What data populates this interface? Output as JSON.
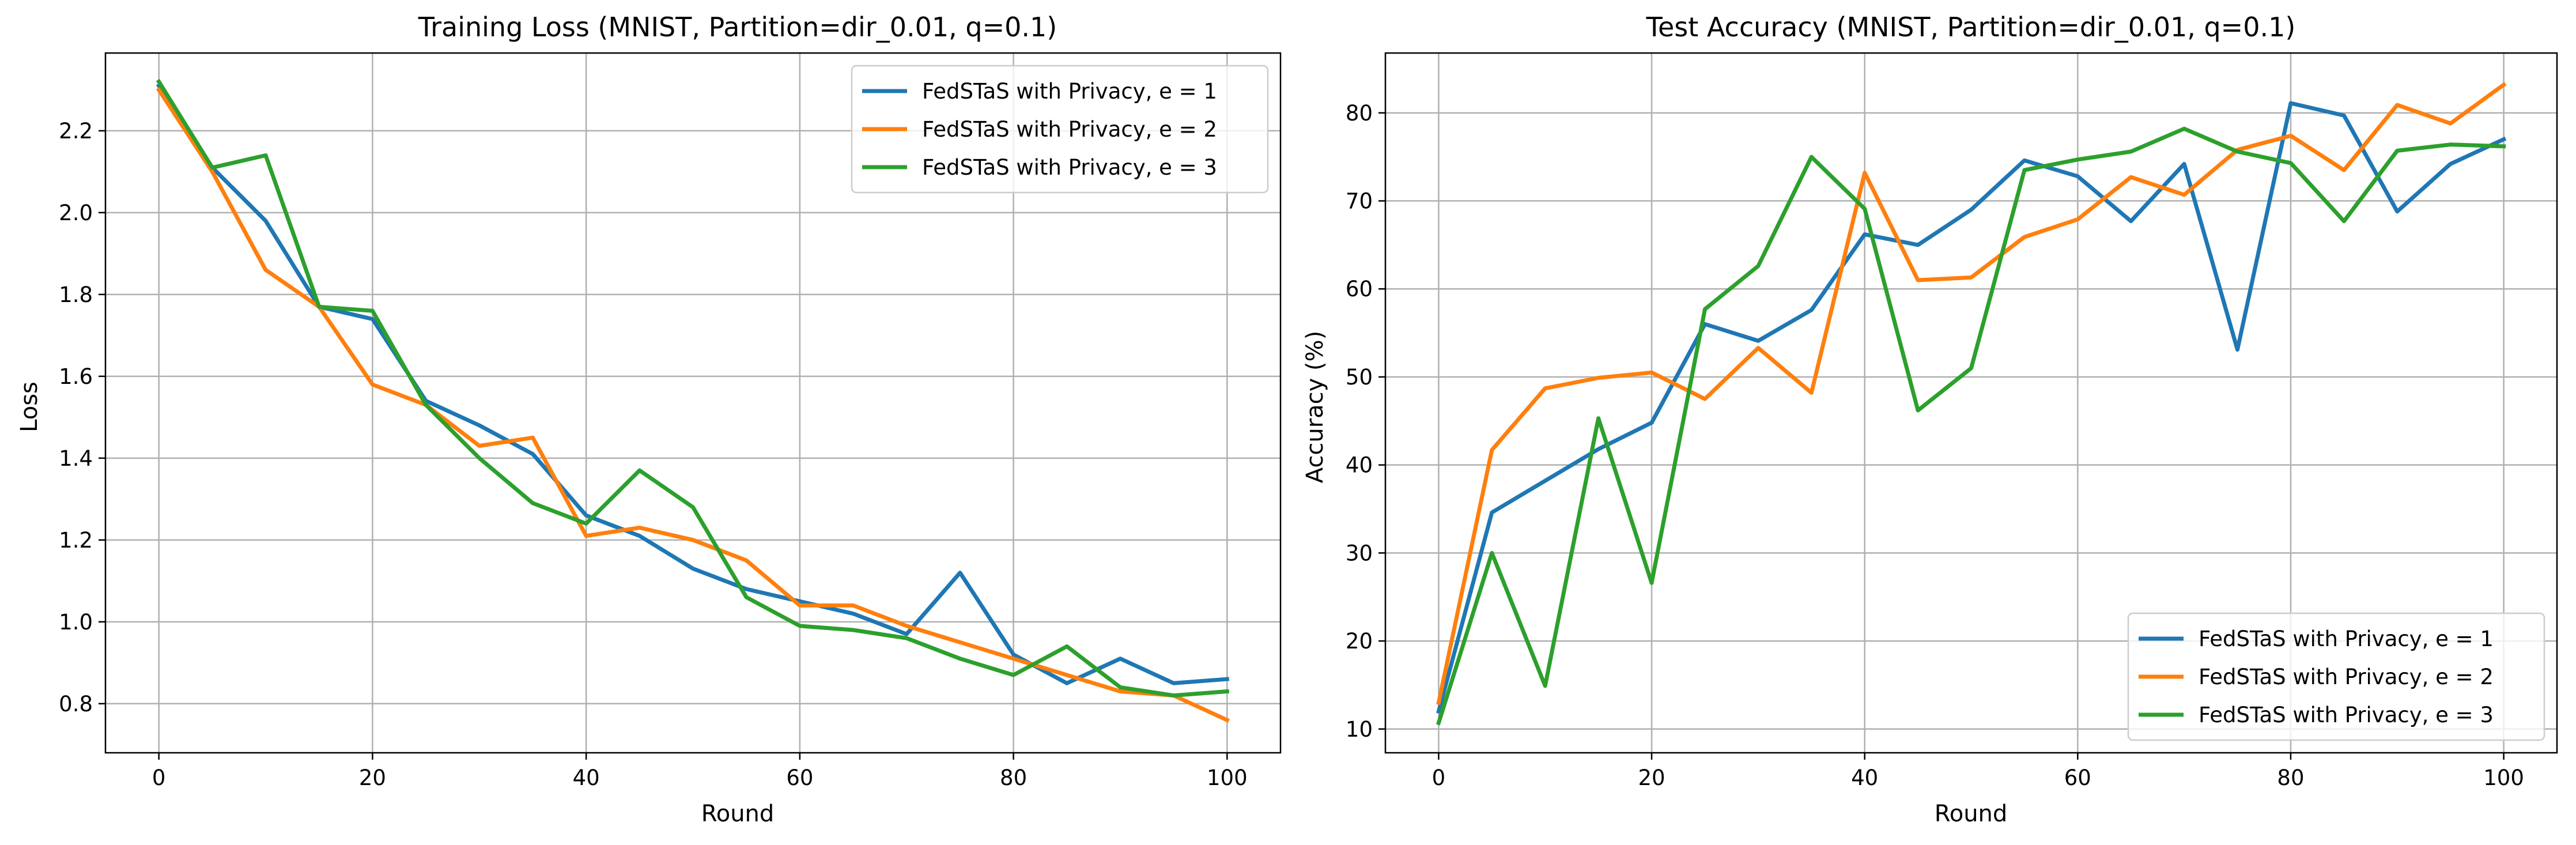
{
  "colors": {
    "series": [
      "#1f77b4",
      "#ff7f0e",
      "#2ca02c"
    ]
  },
  "chart_data": [
    {
      "type": "line",
      "title": "Training Loss (MNIST, Partition=dir_0.01, q=0.1)",
      "xlabel": "Round",
      "ylabel": "Loss",
      "xlim": [
        -5,
        105
      ],
      "ylim": [
        0.68,
        2.39
      ],
      "xticks": [
        0,
        20,
        40,
        60,
        80,
        100
      ],
      "yticks": [
        0.8,
        1.0,
        1.2,
        1.4,
        1.6,
        1.8,
        2.0,
        2.2
      ],
      "ytick_labels": [
        "0.8",
        "1.0",
        "1.2",
        "1.4",
        "1.6",
        "1.8",
        "2.0",
        "2.2"
      ],
      "grid": true,
      "legend_position": "upper right",
      "x": [
        0,
        5,
        10,
        15,
        20,
        25,
        30,
        35,
        40,
        45,
        50,
        55,
        60,
        65,
        70,
        75,
        80,
        85,
        90,
        95,
        100
      ],
      "series": [
        {
          "name": "FedSTaS with Privacy, e = 1",
          "values": [
            2.31,
            2.11,
            1.98,
            1.77,
            1.74,
            1.54,
            1.48,
            1.41,
            1.26,
            1.21,
            1.13,
            1.08,
            1.05,
            1.02,
            0.97,
            1.12,
            0.92,
            0.85,
            0.91,
            0.85,
            0.86
          ]
        },
        {
          "name": "FedSTaS with Privacy, e = 2",
          "values": [
            2.3,
            2.1,
            1.86,
            1.77,
            1.58,
            1.53,
            1.43,
            1.45,
            1.21,
            1.23,
            1.2,
            1.15,
            1.04,
            1.04,
            0.99,
            0.95,
            0.91,
            0.87,
            0.83,
            0.82,
            0.76
          ]
        },
        {
          "name": "FedSTaS with Privacy, e = 3",
          "values": [
            2.32,
            2.11,
            2.14,
            1.77,
            1.76,
            1.53,
            1.4,
            1.29,
            1.24,
            1.37,
            1.28,
            1.06,
            0.99,
            0.98,
            0.96,
            0.91,
            0.87,
            0.94,
            0.84,
            0.82,
            0.83
          ]
        }
      ]
    },
    {
      "type": "line",
      "title": "Test Accuracy (MNIST, Partition=dir_0.01, q=0.1)",
      "xlabel": "Round",
      "ylabel": "Accuracy (%)",
      "xlim": [
        -5,
        105
      ],
      "ylim": [
        7.3,
        86.8
      ],
      "xticks": [
        0,
        20,
        40,
        60,
        80,
        100
      ],
      "yticks": [
        10,
        20,
        30,
        40,
        50,
        60,
        70,
        80
      ],
      "ytick_labels": [
        "10",
        "20",
        "30",
        "40",
        "50",
        "60",
        "70",
        "80"
      ],
      "grid": true,
      "legend_position": "lower right",
      "x": [
        0,
        5,
        10,
        15,
        20,
        25,
        30,
        35,
        40,
        45,
        50,
        55,
        60,
        65,
        70,
        75,
        80,
        85,
        90,
        95,
        100
      ],
      "series": [
        {
          "name": "FedSTaS with Privacy, e = 1",
          "values": [
            12.0,
            34.6,
            38.2,
            41.8,
            44.8,
            56.0,
            54.1,
            57.6,
            66.2,
            65.0,
            69.0,
            74.6,
            72.8,
            67.7,
            74.2,
            53.1,
            81.1,
            79.7,
            68.8,
            74.2,
            77.0
          ]
        },
        {
          "name": "FedSTaS with Privacy, e = 2",
          "values": [
            13.0,
            41.7,
            48.7,
            49.9,
            50.5,
            47.5,
            53.3,
            48.2,
            73.2,
            61.0,
            61.3,
            65.9,
            67.9,
            72.7,
            70.7,
            75.8,
            77.4,
            73.5,
            80.9,
            78.8,
            83.2
          ]
        },
        {
          "name": "FedSTaS with Privacy, e = 3",
          "values": [
            10.7,
            30.0,
            14.9,
            45.3,
            26.6,
            57.7,
            62.6,
            75.0,
            69.1,
            46.2,
            51.0,
            73.5,
            74.7,
            75.6,
            78.2,
            75.6,
            74.3,
            67.7,
            75.7,
            76.4,
            76.2
          ]
        }
      ]
    }
  ]
}
